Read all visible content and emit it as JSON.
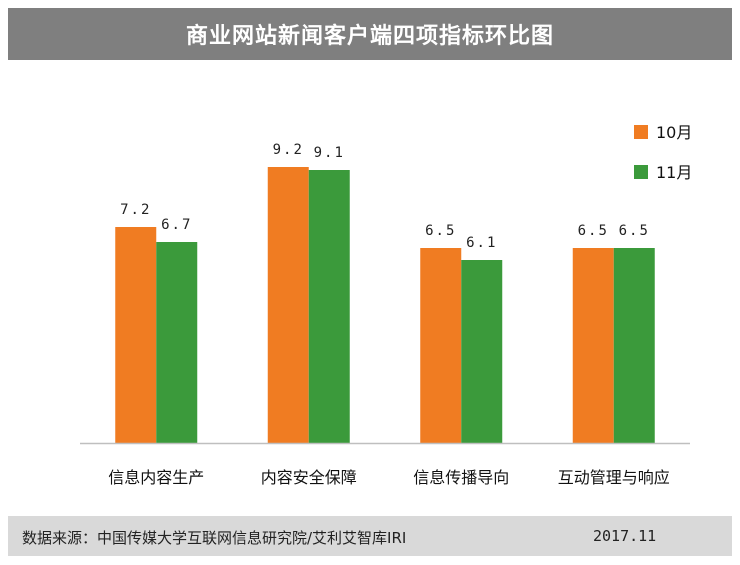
{
  "title": "商业网站新闻客户端四项指标环比图",
  "footer": {
    "source": "数据来源：中国传媒大学互联网信息研究院/艾利艾智库IRI",
    "date": "2017.11"
  },
  "chart_data": {
    "type": "bar",
    "title": "商业网站新闻客户端四项指标环比图",
    "categories": [
      "信息内容生产",
      "内容安全保障",
      "信息传播导向",
      "互动管理与响应"
    ],
    "series": [
      {
        "name": "10月",
        "values": [
          7.2,
          9.2,
          6.5,
          6.5
        ],
        "color": "#f07c22",
        "labels": [
          "7.2",
          "9.2",
          "6.5",
          "6.5"
        ]
      },
      {
        "name": "11月",
        "values": [
          6.7,
          9.1,
          6.1,
          6.5
        ],
        "color": "#3b9a3b",
        "labels": [
          "6.7",
          "9.1",
          "6.1",
          "6.5"
        ]
      }
    ],
    "xlabel": "",
    "ylabel": "",
    "ylim": [
      0,
      10
    ],
    "grid": false,
    "legend": "top-right"
  }
}
